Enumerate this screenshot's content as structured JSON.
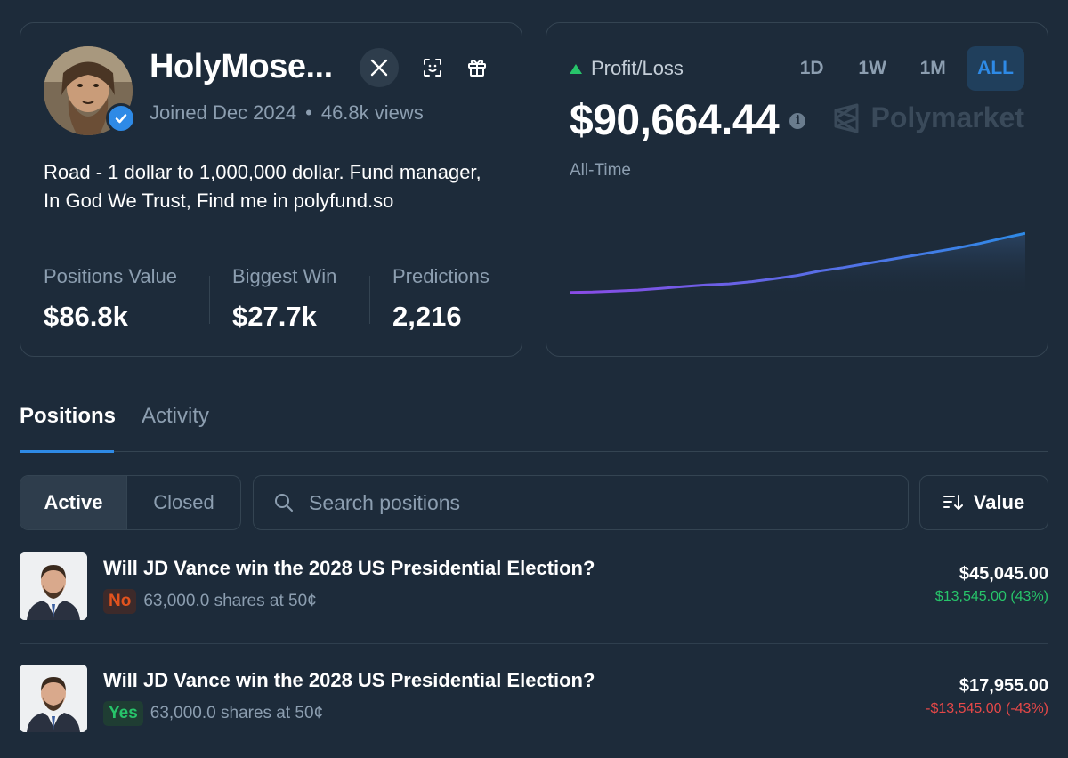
{
  "profile": {
    "username": "HolyMose...",
    "joined": "Joined Dec 2024",
    "dot": "•",
    "views": "46.8k views",
    "bio": "Road - 1 dollar to 1,000,000 dollar. Fund manager, In God We Trust, Find me in polyfund.so",
    "stats": [
      {
        "label": "Positions Value",
        "value": "$86.8k"
      },
      {
        "label": "Biggest Win",
        "value": "$27.7k"
      },
      {
        "label": "Predictions",
        "value": "2,216"
      }
    ]
  },
  "pnl": {
    "label": "Profit/Loss",
    "value": "$90,664.44",
    "info": "i",
    "period": "All-Time",
    "brand": "Polymarket",
    "ranges": [
      "1D",
      "1W",
      "1M",
      "ALL"
    ],
    "active_range": "ALL"
  },
  "chart_data": {
    "type": "area",
    "title": "Profit/Loss",
    "xlabel": "",
    "ylabel": "",
    "grid": false,
    "x": [
      0,
      1,
      2,
      3,
      4,
      5,
      6,
      7,
      8,
      9,
      10,
      11,
      12,
      13,
      14,
      15,
      16,
      17,
      18,
      19,
      20
    ],
    "values": [
      0,
      500,
      1800,
      3500,
      6000,
      9000,
      11500,
      13000,
      16500,
      21000,
      26000,
      33000,
      38000,
      44000,
      50000,
      56000,
      62000,
      68000,
      75000,
      83000,
      90664.44
    ],
    "ylim": [
      -10000,
      140000
    ]
  },
  "tabs": {
    "positions": "Positions",
    "activity": "Activity"
  },
  "filters": {
    "active": "Active",
    "closed": "Closed",
    "search_placeholder": "Search positions",
    "sort_label": "Value"
  },
  "positions": [
    {
      "title": "Will JD Vance win the 2028 US Presidential Election?",
      "outcome": "No",
      "shares": "63,000.0 shares at 50¢",
      "value": "$45,045.00",
      "pnl": "$13,545.00 (43%)"
    },
    {
      "title": "Will JD Vance win the 2028 US Presidential Election?",
      "outcome": "Yes",
      "shares": "63,000.0 shares at 50¢",
      "value": "$17,955.00",
      "pnl": "-$13,545.00 (-43%)"
    }
  ],
  "colors": {
    "background": "#1d2b3a",
    "accent": "#2e8ae6",
    "positive": "#27c46a",
    "negative": "#e64848",
    "no_pill": "#e2531e"
  }
}
